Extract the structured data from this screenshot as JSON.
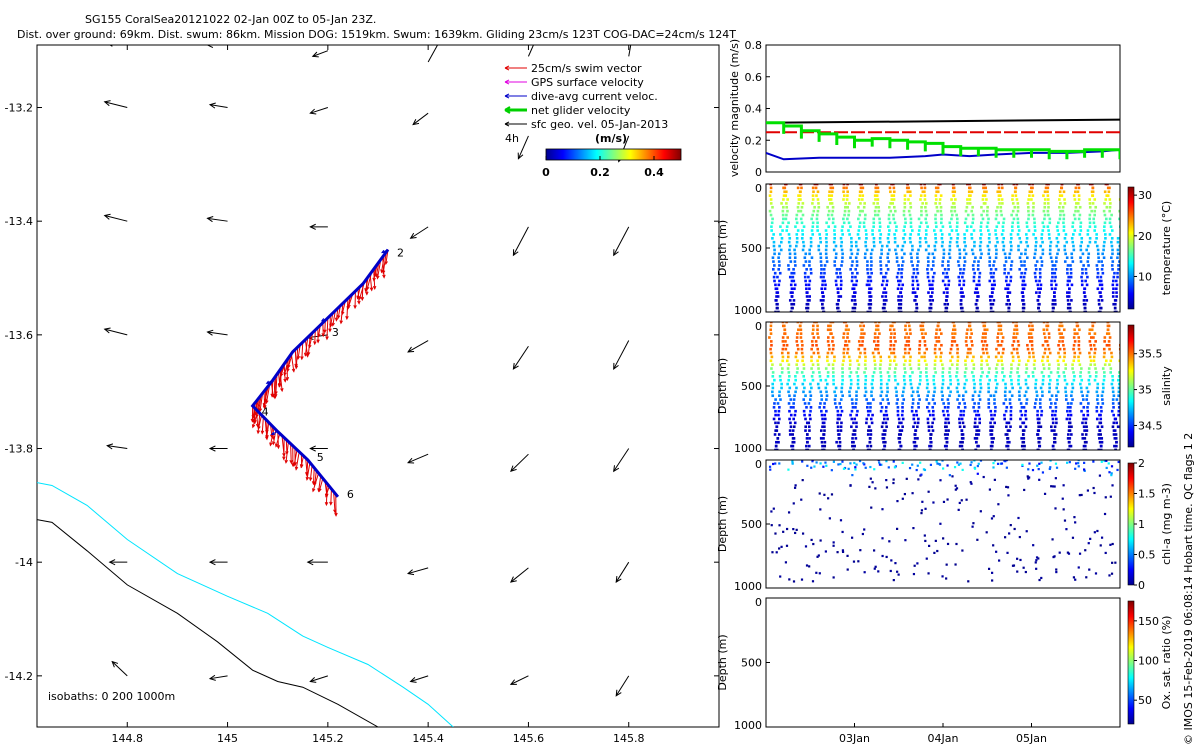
{
  "header": {
    "title_line1": "SG155 CoralSea20121022 02-Jan 00Z to 05-Jan 23Z.",
    "title_line2": "Dist. over ground: 69km. Dist. swum: 86km. Mission DOG: 1519km. Swum: 1639km. Gliding 23cm/s 123T COG-DAC=24cm/s 124T"
  },
  "credit": "© IMOS 15-Feb-2019 06:08:14 Hobart time. QC flags 1  2",
  "colors": {
    "swim": "#e00000",
    "gps": "#e000e0",
    "dac": "#0000c8",
    "net": "#00d000",
    "geo": "#000000",
    "isobath_0": "#000000",
    "isobath_200": "#00e5ff"
  },
  "chart_data": [
    {
      "id": "map",
      "type": "scatter",
      "xlim": [
        144.62,
        145.98
      ],
      "ylim": [
        -14.29,
        -13.09
      ],
      "x_ticks": [
        144.8,
        145,
        145.2,
        145.4,
        145.6,
        145.8
      ],
      "x_tick_labels": [
        "144.8",
        "145",
        "145.2",
        "145.4",
        "145.6",
        "145.8"
      ],
      "y_ticks": [
        -13.2,
        -13.4,
        -13.6,
        -13.8,
        -14,
        -14.2
      ],
      "y_tick_labels": [
        "-13.2",
        "-13.4",
        "-13.6",
        "-13.8",
        "-14",
        "-14.2"
      ],
      "legend": {
        "placement": "top-right",
        "entries": [
          "25cm/s swim vector",
          "GPS surface velocity",
          "dive-avg current veloc.",
          "net glider velocity",
          "sfc geo. vel. 05-Jan-2013"
        ],
        "extra": "4h"
      },
      "colorbar": {
        "label": "(m/s)",
        "ticks": [
          0,
          0.2,
          0.4
        ],
        "tick_labels": [
          "0",
          "0.2",
          "0.4"
        ],
        "range": [
          0,
          0.5
        ]
      },
      "isobaths_label": "isobaths: 0   200  1000m",
      "track": {
        "lon": [
          145.32,
          145.27,
          145.2,
          145.13,
          145.09,
          145.05,
          145.1,
          145.16,
          145.22
        ],
        "lat": [
          -13.45,
          -13.51,
          -13.57,
          -13.63,
          -13.68,
          -13.725,
          -13.77,
          -13.82,
          -13.885
        ]
      },
      "day_markers": [
        {
          "label": "2",
          "lon": 145.33,
          "lat": -13.455
        },
        {
          "label": "3",
          "lon": 145.2,
          "lat": -13.595
        },
        {
          "label": "4",
          "lon": 145.06,
          "lat": -13.735
        },
        {
          "label": "5",
          "lon": 145.17,
          "lat": -13.815
        },
        {
          "label": "6",
          "lon": 145.23,
          "lat": -13.88
        }
      ],
      "isobath_0": {
        "lon": [
          144.62,
          144.65,
          144.72,
          144.8,
          144.9,
          144.98,
          145.05,
          145.1,
          145.15,
          145.22,
          145.3
        ],
        "lat": [
          -13.925,
          -13.93,
          -13.98,
          -14.04,
          -14.09,
          -14.14,
          -14.19,
          -14.21,
          -14.22,
          -14.25,
          -14.29
        ]
      },
      "isobath_200": {
        "lon": [
          144.62,
          144.65,
          144.72,
          144.8,
          144.9,
          145.0,
          145.08,
          145.15,
          145.2,
          145.28,
          145.35,
          145.4,
          145.45
        ],
        "lat": [
          -13.86,
          -13.865,
          -13.9,
          -13.96,
          -14.02,
          -14.06,
          -14.09,
          -14.13,
          -14.15,
          -14.18,
          -14.22,
          -14.25,
          -14.29
        ]
      },
      "geo_vectors": [
        {
          "lon": 144.8,
          "lat": -13.09,
          "dx": -0.04,
          "dy": 0.003
        },
        {
          "lon": 145.0,
          "lat": -13.09,
          "dx": -0.04,
          "dy": 0.0
        },
        {
          "lon": 145.2,
          "lat": -13.1,
          "dx": -0.03,
          "dy": -0.01
        },
        {
          "lon": 145.4,
          "lat": -13.12,
          "dx": 0.025,
          "dy": 0.04
        },
        {
          "lon": 145.6,
          "lat": -13.11,
          "dx": 0.02,
          "dy": 0.04
        },
        {
          "lon": 145.8,
          "lat": -13.11,
          "dx": 0.01,
          "dy": 0.05
        },
        {
          "lon": 144.8,
          "lat": -13.2,
          "dx": -0.045,
          "dy": 0.01
        },
        {
          "lon": 145.0,
          "lat": -13.2,
          "dx": -0.035,
          "dy": 0.005
        },
        {
          "lon": 145.2,
          "lat": -13.2,
          "dx": -0.035,
          "dy": -0.01
        },
        {
          "lon": 145.4,
          "lat": -13.21,
          "dx": -0.03,
          "dy": -0.02
        },
        {
          "lon": 145.6,
          "lat": -13.25,
          "dx": -0.02,
          "dy": -0.04
        },
        {
          "lon": 145.8,
          "lat": -13.25,
          "dx": -0.02,
          "dy": -0.045
        },
        {
          "lon": 144.8,
          "lat": -13.4,
          "dx": -0.045,
          "dy": 0.01
        },
        {
          "lon": 145.0,
          "lat": -13.4,
          "dx": -0.04,
          "dy": 0.005
        },
        {
          "lon": 145.2,
          "lat": -13.41,
          "dx": -0.035,
          "dy": 0.0
        },
        {
          "lon": 145.4,
          "lat": -13.41,
          "dx": -0.035,
          "dy": -0.02
        },
        {
          "lon": 145.6,
          "lat": -13.41,
          "dx": -0.03,
          "dy": -0.05
        },
        {
          "lon": 145.8,
          "lat": -13.41,
          "dx": -0.03,
          "dy": -0.05
        },
        {
          "lon": 144.8,
          "lat": -13.6,
          "dx": -0.045,
          "dy": 0.01
        },
        {
          "lon": 145.0,
          "lat": -13.6,
          "dx": -0.04,
          "dy": 0.005
        },
        {
          "lon": 145.2,
          "lat": -13.6,
          "dx": -0.04,
          "dy": -0.005
        },
        {
          "lon": 145.4,
          "lat": -13.61,
          "dx": -0.04,
          "dy": -0.02
        },
        {
          "lon": 145.6,
          "lat": -13.62,
          "dx": -0.03,
          "dy": -0.04
        },
        {
          "lon": 145.8,
          "lat": -13.61,
          "dx": -0.03,
          "dy": -0.05
        },
        {
          "lon": 144.8,
          "lat": -13.8,
          "dx": -0.04,
          "dy": 0.005
        },
        {
          "lon": 145.0,
          "lat": -13.8,
          "dx": -0.035,
          "dy": 0.0
        },
        {
          "lon": 145.2,
          "lat": -13.8,
          "dx": -0.035,
          "dy": 0.0
        },
        {
          "lon": 145.4,
          "lat": -13.81,
          "dx": -0.04,
          "dy": -0.015
        },
        {
          "lon": 145.6,
          "lat": -13.81,
          "dx": -0.035,
          "dy": -0.03
        },
        {
          "lon": 145.8,
          "lat": -13.8,
          "dx": -0.03,
          "dy": -0.04
        },
        {
          "lon": 144.8,
          "lat": -14.0,
          "dx": -0.035,
          "dy": 0.0
        },
        {
          "lon": 145.0,
          "lat": -14.0,
          "dx": -0.035,
          "dy": 0.0
        },
        {
          "lon": 145.2,
          "lat": -14.0,
          "dx": -0.04,
          "dy": 0.0
        },
        {
          "lon": 145.4,
          "lat": -14.01,
          "dx": -0.04,
          "dy": -0.01
        },
        {
          "lon": 145.6,
          "lat": -14.01,
          "dx": -0.035,
          "dy": -0.025
        },
        {
          "lon": 145.8,
          "lat": -14.0,
          "dx": -0.025,
          "dy": -0.035
        },
        {
          "lon": 144.8,
          "lat": -14.2,
          "dx": -0.03,
          "dy": 0.025
        },
        {
          "lon": 145.0,
          "lat": -14.2,
          "dx": -0.035,
          "dy": -0.005
        },
        {
          "lon": 145.2,
          "lat": -14.2,
          "dx": -0.035,
          "dy": -0.01
        },
        {
          "lon": 145.4,
          "lat": -14.2,
          "dx": -0.035,
          "dy": -0.01
        },
        {
          "lon": 145.6,
          "lat": -14.2,
          "dx": -0.035,
          "dy": -0.015
        },
        {
          "lon": 145.8,
          "lat": -14.2,
          "dx": -0.025,
          "dy": -0.035
        }
      ]
    },
    {
      "id": "velocity",
      "type": "line",
      "ylabel": "velocity magnitude (m/s)",
      "xlim": [
        1.0,
        5.0
      ],
      "ylim": [
        0,
        0.8
      ],
      "y_ticks": [
        0,
        0.2,
        0.4,
        0.6,
        0.8
      ],
      "y_tick_labels": [
        "0",
        "0.2",
        "0.4",
        "0.6",
        "0.8"
      ],
      "series": [
        {
          "color": "#000000",
          "x": [
            1.0,
            5.0
          ],
          "y": [
            0.31,
            0.33
          ]
        },
        {
          "color": "#e00000",
          "dashed": true,
          "x": [
            1.0,
            5.0
          ],
          "y": [
            0.25,
            0.25
          ]
        },
        {
          "color": "#0000c8",
          "x": [
            1.0,
            1.2,
            1.6,
            2.0,
            2.4,
            2.8,
            3.0,
            3.3,
            3.6,
            4.0,
            4.4,
            4.8,
            5.0
          ],
          "y": [
            0.12,
            0.08,
            0.09,
            0.09,
            0.09,
            0.1,
            0.11,
            0.1,
            0.11,
            0.12,
            0.12,
            0.13,
            0.14
          ]
        },
        {
          "color": "#00e000",
          "x": [
            1.0,
            1.2,
            1.4,
            1.6,
            1.8,
            2.0,
            2.2,
            2.4,
            2.6,
            2.8,
            3.0,
            3.2,
            3.4,
            3.6,
            3.8,
            4.0,
            4.2,
            4.4,
            4.6,
            4.8,
            5.0
          ],
          "y": [
            0.29,
            0.27,
            0.24,
            0.22,
            0.2,
            0.18,
            0.19,
            0.18,
            0.17,
            0.16,
            0.14,
            0.13,
            0.13,
            0.12,
            0.12,
            0.12,
            0.11,
            0.11,
            0.12,
            0.12,
            0.11
          ]
        }
      ]
    },
    {
      "id": "temperature",
      "type": "scatter",
      "ylabel": "Depth (m)",
      "clabel": "temperature (°C)",
      "ylim": [
        0,
        1000
      ],
      "y_ticks": [
        0,
        500,
        1000
      ],
      "y_tick_labels": [
        "0",
        "500",
        "1000"
      ],
      "c_range": [
        2,
        32
      ],
      "c_ticks": [
        10,
        20,
        30
      ],
      "c_tick_labels": [
        "10",
        "20",
        "30"
      ],
      "cycles": 23,
      "max_depth": 1000,
      "profile": "temperature"
    },
    {
      "id": "salinity",
      "type": "scatter",
      "ylabel": "Depth (m)",
      "clabel": "salinity",
      "ylim": [
        0,
        1000
      ],
      "y_ticks": [
        0,
        500,
        1000
      ],
      "y_tick_labels": [
        "0",
        "500",
        "1000"
      ],
      "c_range": [
        34.2,
        35.9
      ],
      "c_ticks": [
        34.5,
        35,
        35.5
      ],
      "c_tick_labels": [
        "34.5",
        "35",
        "35.5"
      ],
      "cycles": 23,
      "max_depth": 1000,
      "profile": "salinity"
    },
    {
      "id": "chla",
      "type": "scatter",
      "ylabel": "Depth (m)",
      "clabel": "chl-a (mg m-3)",
      "ylim": [
        0,
        1000
      ],
      "y_ticks": [
        0,
        500,
        1000
      ],
      "y_tick_labels": [
        "0",
        "500",
        "1000"
      ],
      "c_range": [
        0,
        2
      ],
      "c_ticks": [
        0,
        0.5,
        1,
        1.5,
        2
      ],
      "c_tick_labels": [
        "0",
        "0.5",
        "1",
        "1.5",
        "2"
      ],
      "cycles": 23,
      "max_depth": 950,
      "profile": "chla"
    },
    {
      "id": "oxygen",
      "type": "scatter",
      "ylabel": "Depth (m)",
      "clabel": "Ox. sat. ratio (%)",
      "ylim": [
        0,
        1000
      ],
      "y_ticks": [
        0,
        500,
        1000
      ],
      "y_tick_labels": [
        "0",
        "500",
        "1000"
      ],
      "c_range": [
        20,
        175
      ],
      "c_ticks": [
        50,
        100,
        150
      ],
      "c_tick_labels": [
        "50",
        "100",
        "150"
      ],
      "x_ticks": [
        2.0,
        3.0,
        4.0
      ],
      "x_tick_labels": [
        "03Jan",
        "04Jan",
        "05Jan"
      ],
      "xlim": [
        1.0,
        5.0
      ],
      "empty": true
    }
  ]
}
